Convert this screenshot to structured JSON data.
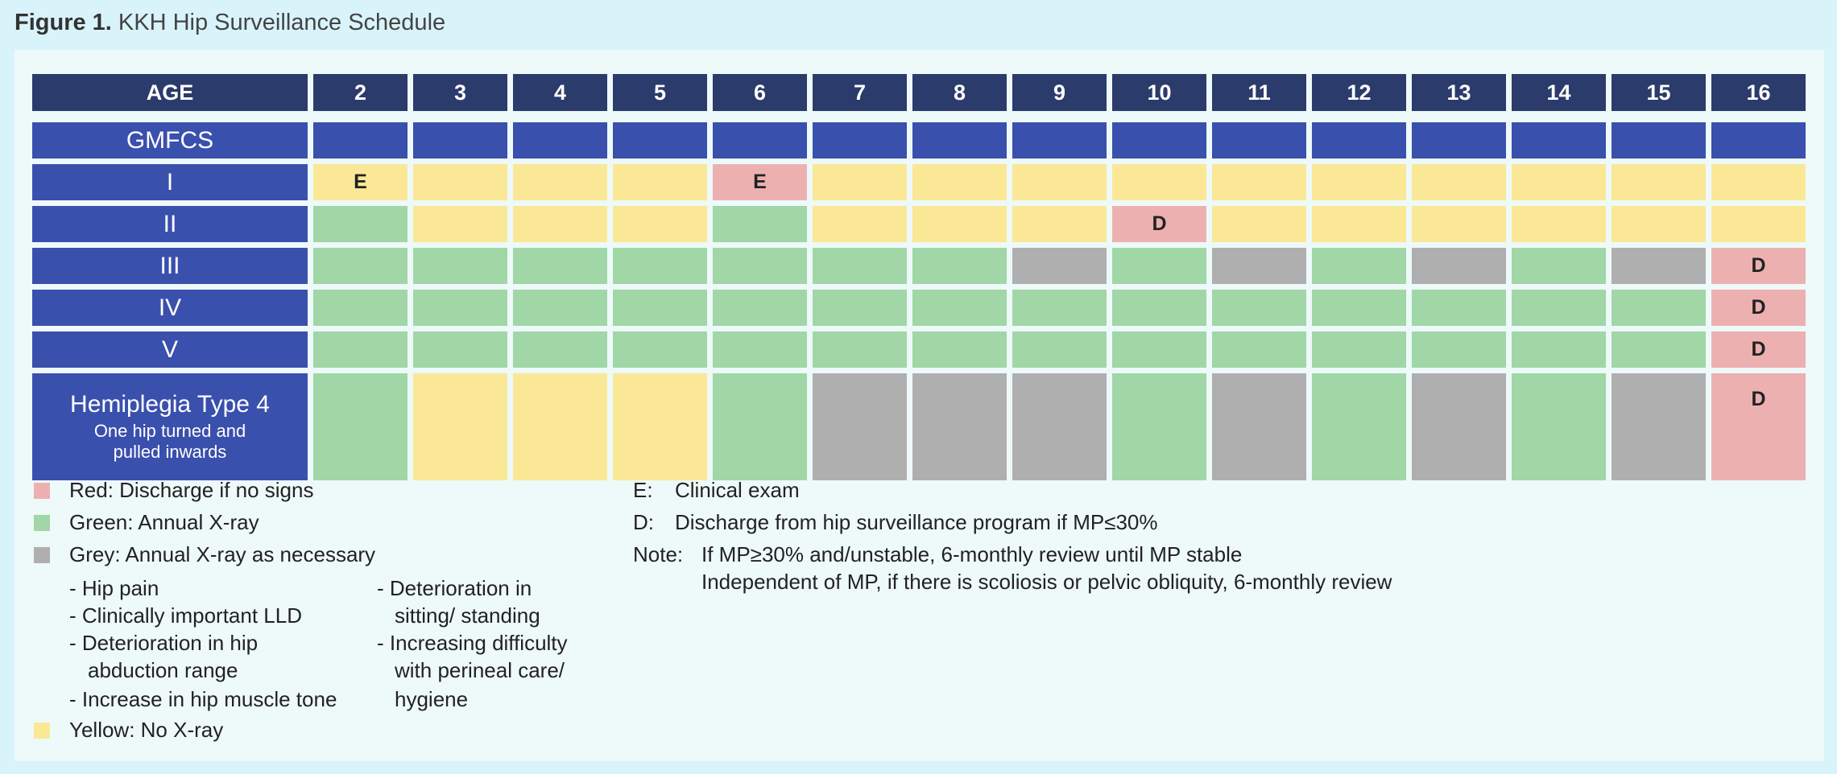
{
  "figure": {
    "label": "Figure 1.",
    "title": "KKH Hip Surveillance Schedule"
  },
  "colors": {
    "header": "#2b3b6b",
    "row_label": "#3a50ad",
    "yellow": "#fbe896",
    "green": "#a1d6a7",
    "grey": "#afafaf",
    "red": "#edb0b1",
    "panel": "#eef9f9",
    "page": "#d9f3fb"
  },
  "table": {
    "age_header": "AGE",
    "ages": [
      "2",
      "3",
      "4",
      "5",
      "6",
      "7",
      "8",
      "9",
      "10",
      "11",
      "12",
      "13",
      "14",
      "15",
      "16"
    ],
    "gmfcs_label": "GMFCS",
    "rows": [
      {
        "label": "I",
        "cells": [
          {
            "color": "yellow",
            "mark": "E"
          },
          {
            "color": "yellow",
            "mark": ""
          },
          {
            "color": "yellow",
            "mark": ""
          },
          {
            "color": "yellow",
            "mark": ""
          },
          {
            "color": "red",
            "mark": "E"
          },
          {
            "color": "yellow",
            "mark": ""
          },
          {
            "color": "yellow",
            "mark": ""
          },
          {
            "color": "yellow",
            "mark": ""
          },
          {
            "color": "yellow",
            "mark": ""
          },
          {
            "color": "yellow",
            "mark": ""
          },
          {
            "color": "yellow",
            "mark": ""
          },
          {
            "color": "yellow",
            "mark": ""
          },
          {
            "color": "yellow",
            "mark": ""
          },
          {
            "color": "yellow",
            "mark": ""
          },
          {
            "color": "yellow",
            "mark": ""
          }
        ]
      },
      {
        "label": "II",
        "cells": [
          {
            "color": "green",
            "mark": ""
          },
          {
            "color": "yellow",
            "mark": ""
          },
          {
            "color": "yellow",
            "mark": ""
          },
          {
            "color": "yellow",
            "mark": ""
          },
          {
            "color": "green",
            "mark": ""
          },
          {
            "color": "yellow",
            "mark": ""
          },
          {
            "color": "yellow",
            "mark": ""
          },
          {
            "color": "yellow",
            "mark": ""
          },
          {
            "color": "red",
            "mark": "D"
          },
          {
            "color": "yellow",
            "mark": ""
          },
          {
            "color": "yellow",
            "mark": ""
          },
          {
            "color": "yellow",
            "mark": ""
          },
          {
            "color": "yellow",
            "mark": ""
          },
          {
            "color": "yellow",
            "mark": ""
          },
          {
            "color": "yellow",
            "mark": ""
          }
        ]
      },
      {
        "label": "III",
        "cells": [
          {
            "color": "green",
            "mark": ""
          },
          {
            "color": "green",
            "mark": ""
          },
          {
            "color": "green",
            "mark": ""
          },
          {
            "color": "green",
            "mark": ""
          },
          {
            "color": "green",
            "mark": ""
          },
          {
            "color": "green",
            "mark": ""
          },
          {
            "color": "green",
            "mark": ""
          },
          {
            "color": "grey",
            "mark": ""
          },
          {
            "color": "green",
            "mark": ""
          },
          {
            "color": "grey",
            "mark": ""
          },
          {
            "color": "green",
            "mark": ""
          },
          {
            "color": "grey",
            "mark": ""
          },
          {
            "color": "green",
            "mark": ""
          },
          {
            "color": "grey",
            "mark": ""
          },
          {
            "color": "red",
            "mark": "D"
          }
        ]
      },
      {
        "label": "IV",
        "cells": [
          {
            "color": "green",
            "mark": ""
          },
          {
            "color": "green",
            "mark": ""
          },
          {
            "color": "green",
            "mark": ""
          },
          {
            "color": "green",
            "mark": ""
          },
          {
            "color": "green",
            "mark": ""
          },
          {
            "color": "green",
            "mark": ""
          },
          {
            "color": "green",
            "mark": ""
          },
          {
            "color": "green",
            "mark": ""
          },
          {
            "color": "green",
            "mark": ""
          },
          {
            "color": "green",
            "mark": ""
          },
          {
            "color": "green",
            "mark": ""
          },
          {
            "color": "green",
            "mark": ""
          },
          {
            "color": "green",
            "mark": ""
          },
          {
            "color": "green",
            "mark": ""
          },
          {
            "color": "red",
            "mark": "D"
          }
        ]
      },
      {
        "label": "V",
        "cells": [
          {
            "color": "green",
            "mark": ""
          },
          {
            "color": "green",
            "mark": ""
          },
          {
            "color": "green",
            "mark": ""
          },
          {
            "color": "green",
            "mark": ""
          },
          {
            "color": "green",
            "mark": ""
          },
          {
            "color": "green",
            "mark": ""
          },
          {
            "color": "green",
            "mark": ""
          },
          {
            "color": "green",
            "mark": ""
          },
          {
            "color": "green",
            "mark": ""
          },
          {
            "color": "green",
            "mark": ""
          },
          {
            "color": "green",
            "mark": ""
          },
          {
            "color": "green",
            "mark": ""
          },
          {
            "color": "green",
            "mark": ""
          },
          {
            "color": "green",
            "mark": ""
          },
          {
            "color": "red",
            "mark": "D"
          }
        ]
      }
    ],
    "hemi_row": {
      "label_main": "Hemiplegia Type 4",
      "label_sub_1": "One hip turned and",
      "label_sub_2": "pulled inwards",
      "cells": [
        {
          "color": "green",
          "mark": ""
        },
        {
          "color": "yellow",
          "mark": ""
        },
        {
          "color": "yellow",
          "mark": ""
        },
        {
          "color": "yellow",
          "mark": ""
        },
        {
          "color": "green",
          "mark": ""
        },
        {
          "color": "grey",
          "mark": ""
        },
        {
          "color": "grey",
          "mark": ""
        },
        {
          "color": "grey",
          "mark": ""
        },
        {
          "color": "green",
          "mark": ""
        },
        {
          "color": "grey",
          "mark": ""
        },
        {
          "color": "green",
          "mark": ""
        },
        {
          "color": "grey",
          "mark": ""
        },
        {
          "color": "green",
          "mark": ""
        },
        {
          "color": "grey",
          "mark": ""
        },
        {
          "color": "red",
          "mark": "D"
        }
      ]
    }
  },
  "legend": {
    "red": "Red: Discharge if no signs",
    "green": "Green: Annual X-ray",
    "grey": "Grey: Annual X-ray as necessary",
    "grey_bullets_left": [
      "Hip pain",
      "Clinically important LLD",
      "Deterioration in hip",
      "abduction range",
      "Increase in hip muscle tone"
    ],
    "grey_bullets_right": [
      "Deterioration in",
      "sitting/ standing",
      "Increasing difficulty",
      "with perineal care/",
      "hygiene"
    ],
    "yellow": "Yellow: No X-ray"
  },
  "notes": {
    "e_key": "E:",
    "e_text": "Clinical exam",
    "d_key": "D:",
    "d_text": "Discharge from hip surveillance program if MP≤30%",
    "note_key": "Note:",
    "note_line_1": "If MP≥30% and/unstable, 6-monthly review until MP stable",
    "note_line_2": "Independent of MP, if there is scoliosis or pelvic obliquity, 6-monthly review"
  }
}
